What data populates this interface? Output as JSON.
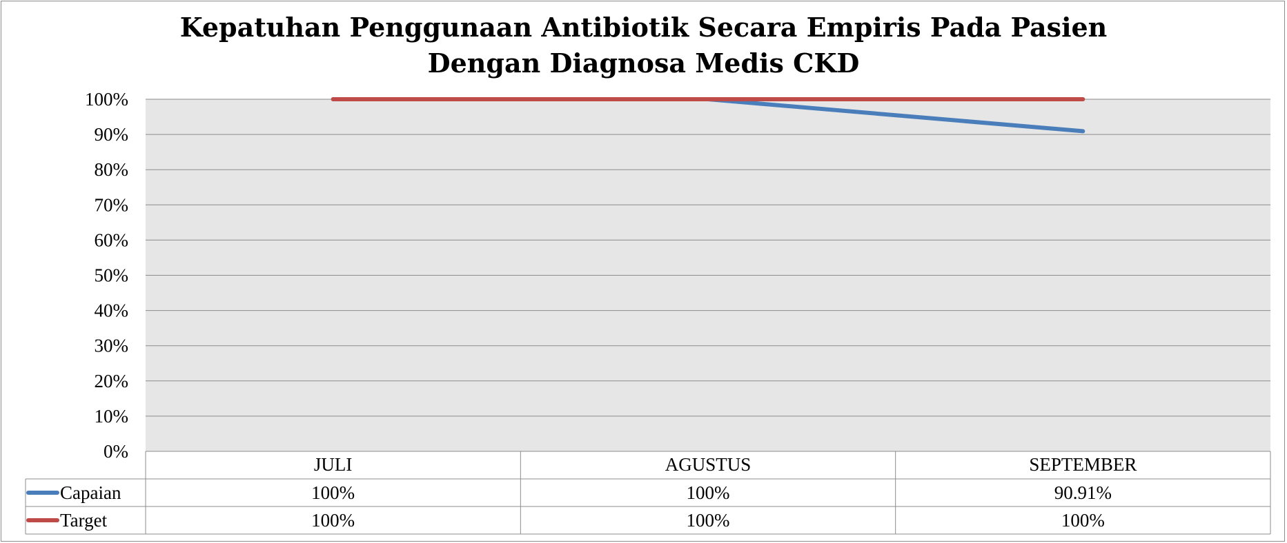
{
  "chart_data": {
    "type": "line",
    "title": [
      "Kepatuhan Penggunaan Antibiotik Secara Empiris Pada Pasien",
      "Dengan Diagnosa Medis CKD"
    ],
    "categories": [
      "JULI",
      "AGUSTUS",
      "SEPTEMBER"
    ],
    "ylim": [
      0,
      100
    ],
    "y_ticks": [
      "0%",
      "10%",
      "20%",
      "30%",
      "40%",
      "50%",
      "60%",
      "70%",
      "80%",
      "90%",
      "100%"
    ],
    "grid": true,
    "legend": "data-table",
    "series": [
      {
        "name": "Capaian",
        "values": [
          100,
          100,
          90.91
        ],
        "labels": [
          "100%",
          "100%",
          "90.91%"
        ],
        "color": "#4a7ebb"
      },
      {
        "name": "Target",
        "values": [
          100,
          100,
          100
        ],
        "labels": [
          "100%",
          "100%",
          "100%"
        ],
        "color": "#be4b48"
      }
    ]
  }
}
